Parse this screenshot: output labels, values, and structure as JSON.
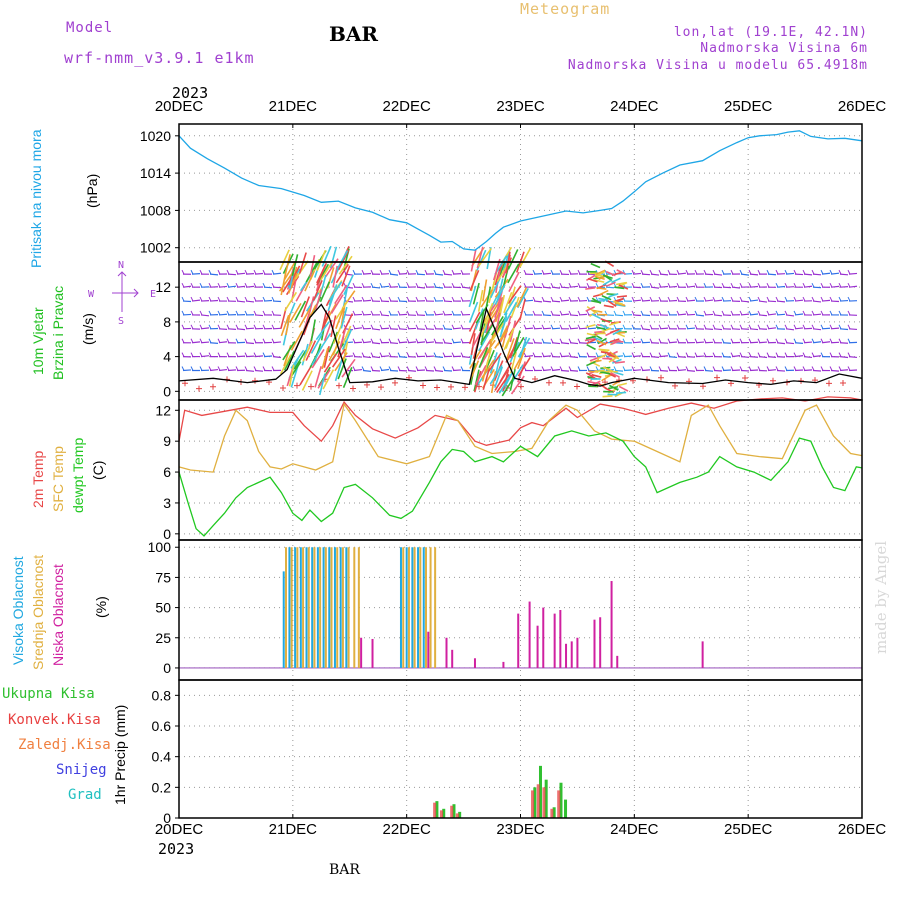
{
  "header": {
    "model_label": "Model",
    "model_name": "wrf-nmm_v3.9.1  e1km",
    "station": "BAR",
    "chart_title": "Meteogram",
    "lonlat": "lon,lat (19.1E, 42.1N)",
    "elevation": "Nadmorska Visina 6m",
    "model_elevation": "Nadmorska Visina u modelu 65.4918m",
    "year_top": "2023",
    "year_bottom": "2023",
    "footer_station": "BAR",
    "credit": "made by Angel"
  },
  "colors": {
    "pressure": "#1ea6e6",
    "temp2m": "#e84848",
    "sfc": "#e0b040",
    "dewpt": "#20c820",
    "high": "#20a8e0",
    "mid": "#e0b040",
    "low": "#d020a0",
    "total_precip": "#30c030",
    "conv_precip": "#e84040",
    "frz_precip": "#f08040",
    "snow": "#4040e0",
    "grad": "#20c0c0",
    "wind_speed": "#000000",
    "wind_barb": "#9a30d0"
  },
  "wind_legend": {
    "e": "E",
    "w": "W",
    "n": "N",
    "s": "S"
  },
  "chart_data": [
    {
      "id": "pressure",
      "type": "line",
      "title": "",
      "ylabel_lines": [
        "Pritisak na nivou mora",
        "(hPa)"
      ],
      "x_ticks": [
        "20DEC",
        "21DEC",
        "22DEC",
        "23DEC",
        "24DEC",
        "25DEC",
        "26DEC"
      ],
      "x_days": [
        0,
        1,
        2,
        3,
        4,
        5,
        6
      ],
      "yticks": [
        1002,
        1008,
        1014,
        1020
      ],
      "ylim": [
        999.7,
        1021.9
      ],
      "grid": true,
      "series": [
        {
          "name": "Pritisak na nivou mora",
          "x": [
            0,
            0.1,
            0.25,
            0.4,
            0.55,
            0.7,
            0.9,
            1.1,
            1.25,
            1.4,
            1.55,
            1.7,
            1.85,
            2.0,
            2.1,
            2.2,
            2.3,
            2.4,
            2.5,
            2.6,
            2.7,
            2.78,
            2.85,
            3.0,
            3.2,
            3.4,
            3.55,
            3.7,
            3.8,
            3.9,
            4.0,
            4.1,
            4.25,
            4.4,
            4.6,
            4.75,
            4.9,
            5.0,
            5.1,
            5.25,
            5.35,
            5.45,
            5.55,
            5.7,
            5.85,
            6.0
          ],
          "y": [
            1020.0,
            1018.0,
            1016.3,
            1014.8,
            1013.2,
            1012.0,
            1011.5,
            1010.4,
            1009.3,
            1009.5,
            1008.4,
            1007.7,
            1006.5,
            1006.0,
            1005.0,
            1004.0,
            1002.9,
            1003.0,
            1001.8,
            1001.6,
            1003.0,
            1004.3,
            1005.3,
            1006.3,
            1007.1,
            1007.9,
            1007.6,
            1008.0,
            1008.3,
            1009.5,
            1011.0,
            1012.6,
            1014.0,
            1015.3,
            1016.0,
            1017.6,
            1018.9,
            1019.7,
            1020.0,
            1020.2,
            1020.6,
            1020.8,
            1019.9,
            1019.5,
            1019.6,
            1019.2
          ]
        }
      ]
    },
    {
      "id": "wind",
      "type": "line",
      "title": "",
      "ylabel_lines": [
        "10m Vjetar",
        "Brzina i Pravac",
        "(m/s)"
      ],
      "yticks": [
        0,
        4,
        8,
        12
      ],
      "ylim": [
        -1.0,
        14.9
      ],
      "grid": true,
      "series": [
        {
          "name": "10m Vjetar",
          "x": [
            0,
            0.3,
            0.6,
            0.85,
            0.95,
            1.05,
            1.15,
            1.25,
            1.32,
            1.4,
            1.5,
            1.7,
            1.9,
            2.1,
            2.3,
            2.45,
            2.55,
            2.62,
            2.7,
            2.78,
            2.85,
            2.95,
            3.1,
            3.3,
            3.5,
            3.6,
            3.7,
            3.8,
            4.0,
            4.3,
            4.6,
            4.8,
            5.0,
            5.2,
            5.4,
            5.6,
            5.8,
            6.0
          ],
          "y": [
            1.2,
            1.5,
            1.0,
            1.4,
            2.5,
            5.5,
            8.5,
            10.0,
            8.5,
            5.0,
            1.0,
            1.1,
            1.5,
            1.2,
            1.3,
            1.0,
            0.8,
            5.0,
            9.5,
            7.0,
            4.5,
            1.5,
            1.0,
            1.8,
            1.2,
            0.8,
            0.6,
            1.0,
            1.5,
            1.0,
            0.9,
            1.3,
            1.0,
            0.8,
            1.2,
            1.0,
            2.0,
            1.5
          ]
        }
      ],
      "direction_legend": "N up, E right, W left, S down"
    },
    {
      "id": "temperature",
      "type": "line",
      "title": "",
      "ylabel_lines": [
        "2m Temp",
        "SFC Temp",
        "dewpt Temp",
        "(C)"
      ],
      "yticks": [
        0,
        3,
        6,
        9,
        12
      ],
      "ylim": [
        -0.6,
        13.0
      ],
      "grid": true,
      "series": [
        {
          "name": "2m Temp",
          "x": [
            0,
            0.05,
            0.2,
            0.4,
            0.6,
            0.8,
            1.0,
            1.1,
            1.25,
            1.35,
            1.45,
            1.55,
            1.7,
            1.9,
            2.1,
            2.25,
            2.45,
            2.6,
            2.7,
            2.9,
            3.0,
            3.1,
            3.2,
            3.4,
            3.5,
            3.7,
            3.9,
            4.1,
            4.3,
            4.5,
            4.7,
            4.9,
            5.1,
            5.3,
            5.5,
            5.7,
            5.9,
            6.0
          ],
          "y": [
            9.0,
            12.0,
            11.5,
            11.9,
            12.3,
            11.8,
            11.8,
            10.5,
            9.0,
            10.5,
            12.8,
            11.5,
            10.2,
            9.3,
            10.3,
            11.5,
            11.0,
            9.0,
            8.6,
            9.1,
            10.3,
            10.8,
            10.5,
            12.2,
            11.3,
            12.6,
            12.2,
            11.6,
            12.2,
            12.7,
            12.2,
            12.9,
            13.1,
            13.2,
            12.9,
            13.3,
            13.2,
            13.0
          ]
        },
        {
          "name": "SFC Temp",
          "x": [
            0,
            0.1,
            0.3,
            0.4,
            0.5,
            0.6,
            0.7,
            0.8,
            0.9,
            1.0,
            1.2,
            1.35,
            1.45,
            1.55,
            1.75,
            2.0,
            2.2,
            2.35,
            2.45,
            2.6,
            2.75,
            2.95,
            3.1,
            3.25,
            3.4,
            3.5,
            3.65,
            3.8,
            4.0,
            4.2,
            4.4,
            4.5,
            4.65,
            4.75,
            4.9,
            5.1,
            5.3,
            5.5,
            5.6,
            5.75,
            5.9,
            6.0
          ],
          "y": [
            6.5,
            6.2,
            6.0,
            9.5,
            12.0,
            11.0,
            8.0,
            6.5,
            6.3,
            6.8,
            6.2,
            7.0,
            12.6,
            11.0,
            7.5,
            6.8,
            7.5,
            11.5,
            11.0,
            8.5,
            7.8,
            8.0,
            8.3,
            11.0,
            12.5,
            12.0,
            10.0,
            9.2,
            9.0,
            8.0,
            7.0,
            11.5,
            12.5,
            10.5,
            7.8,
            7.5,
            7.3,
            12.0,
            12.5,
            9.5,
            7.8,
            7.6
          ]
        },
        {
          "name": "dewpt Temp",
          "x": [
            0,
            0.08,
            0.15,
            0.22,
            0.3,
            0.4,
            0.5,
            0.6,
            0.7,
            0.8,
            0.9,
            1.0,
            1.08,
            1.15,
            1.25,
            1.35,
            1.45,
            1.55,
            1.7,
            1.85,
            1.95,
            2.05,
            2.2,
            2.3,
            2.4,
            2.5,
            2.6,
            2.75,
            2.85,
            3.0,
            3.15,
            3.3,
            3.45,
            3.6,
            3.75,
            3.9,
            4.0,
            4.1,
            4.2,
            4.4,
            4.55,
            4.65,
            4.75,
            4.9,
            5.05,
            5.2,
            5.35,
            5.45,
            5.55,
            5.65,
            5.75,
            5.85,
            5.95,
            6.0
          ],
          "y": [
            6.0,
            3.0,
            0.5,
            -0.2,
            0.8,
            2.0,
            3.5,
            4.5,
            5.0,
            5.5,
            4.0,
            2.0,
            1.3,
            2.3,
            1.2,
            2.0,
            4.5,
            4.8,
            3.5,
            1.8,
            1.5,
            2.2,
            5.0,
            7.0,
            8.2,
            8.0,
            7.0,
            7.5,
            7.0,
            8.5,
            7.5,
            9.5,
            10.0,
            9.5,
            9.8,
            9.0,
            7.5,
            6.5,
            4.0,
            5.0,
            5.5,
            6.0,
            7.5,
            6.5,
            6.0,
            5.2,
            7.0,
            9.3,
            9.0,
            6.5,
            4.5,
            4.2,
            6.5,
            6.4
          ]
        }
      ]
    },
    {
      "id": "cloud",
      "type": "bar",
      "title": "",
      "ylabel_lines": [
        "Visoka Oblacnost",
        "Srednja Oblacnost",
        "Niska Oblacnost",
        "(%)"
      ],
      "yticks": [
        0,
        25,
        50,
        75,
        100
      ],
      "ylim": [
        -10,
        106
      ],
      "grid": true,
      "series": [
        {
          "name": "Visoka Oblacnost",
          "x": [
            0.92,
            0.97,
            1.02,
            1.07,
            1.12,
            1.17,
            1.22,
            1.27,
            1.32,
            1.37,
            1.42,
            1.47,
            1.95,
            2.0,
            2.05,
            2.1,
            2.15
          ],
          "y": [
            80,
            100,
            100,
            100,
            100,
            100,
            100,
            100,
            100,
            100,
            100,
            100,
            100,
            100,
            100,
            100,
            100
          ]
        },
        {
          "name": "Srednja Oblacnost",
          "x": [
            0.94,
            0.99,
            1.04,
            1.09,
            1.14,
            1.19,
            1.24,
            1.29,
            1.34,
            1.39,
            1.44,
            1.49,
            1.54,
            1.58,
            1.97,
            2.02,
            2.07,
            2.12,
            2.17,
            2.21,
            2.25
          ],
          "y": [
            100,
            100,
            100,
            100,
            100,
            100,
            100,
            100,
            100,
            100,
            100,
            100,
            100,
            100,
            100,
            100,
            100,
            100,
            100,
            100,
            100
          ]
        },
        {
          "name": "Niska Oblacnost",
          "x": [
            1.6,
            1.7,
            2.19,
            2.35,
            2.4,
            2.6,
            2.85,
            2.98,
            3.08,
            3.15,
            3.2,
            3.3,
            3.35,
            3.4,
            3.45,
            3.5,
            3.65,
            3.7,
            3.8,
            3.85,
            4.6
          ],
          "y": [
            25,
            24,
            30,
            25,
            15,
            8,
            5,
            45,
            55,
            35,
            50,
            45,
            48,
            20,
            22,
            25,
            40,
            42,
            72,
            10,
            22
          ]
        }
      ]
    },
    {
      "id": "precip",
      "type": "bar",
      "title": "",
      "ylabel_lines": [
        "1hr Precip (mm)"
      ],
      "legend": [
        "Ukupna Kisa",
        "Konvek.Kisa",
        "Zaledj.Kisa",
        "Snijeg",
        "Grad"
      ],
      "yticks": [
        0,
        0.2,
        0.4,
        0.6,
        0.8
      ],
      "ylim": [
        0,
        0.9
      ],
      "grid": true,
      "series": [
        {
          "name": "Ukupna Kisa",
          "x": [
            2.27,
            2.33,
            2.42,
            2.47,
            3.13,
            3.18,
            3.23,
            3.3,
            3.36,
            3.4
          ],
          "y": [
            0.11,
            0.06,
            0.09,
            0.04,
            0.2,
            0.34,
            0.25,
            0.07,
            0.23,
            0.12
          ]
        },
        {
          "name": "Konvek.Kisa",
          "x": [
            2.25,
            2.31,
            2.4,
            2.45,
            3.11,
            3.16,
            3.21,
            3.28,
            3.34
          ],
          "y": [
            0.1,
            0.05,
            0.08,
            0.03,
            0.18,
            0.22,
            0.2,
            0.06,
            0.18
          ]
        },
        {
          "name": "Zaledj.Kisa",
          "x": [],
          "y": []
        },
        {
          "name": "Snijeg",
          "x": [],
          "y": []
        },
        {
          "name": "Grad",
          "x": [],
          "y": []
        }
      ]
    }
  ]
}
